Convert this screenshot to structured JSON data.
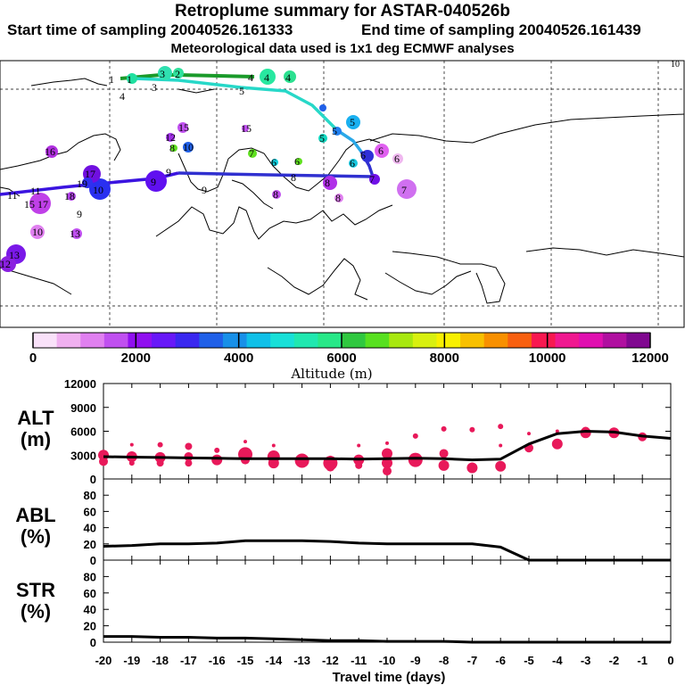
{
  "header": {
    "title": "Retroplume summary for ASTAR-040526b",
    "start": "Start time of sampling 20040526.161333",
    "end": "End time of sampling 20040526.161439",
    "met": "Meteorological data used is 1x1 deg ECMWF analyses"
  },
  "map": {
    "corner_label": "10",
    "path_colors": [
      "#1a9a2a",
      "#27d8c8",
      "#2aa8e8",
      "#3030d0",
      "#3b14e0"
    ]
  },
  "colorbar": {
    "title": "Altitude (m)",
    "tick_labels": [
      "0",
      "2000",
      "4000",
      "6000",
      "8000",
      "10000",
      "12000"
    ],
    "colors": [
      "#f9e1f9",
      "#f0b0f0",
      "#e080f0",
      "#c050f0",
      "#9010f0",
      "#6818f8",
      "#3a28f0",
      "#2060e8",
      "#1890e8",
      "#10c0e8",
      "#18e0d8",
      "#20e8b0",
      "#28e888",
      "#30c840",
      "#58e020",
      "#a8e810",
      "#d8f010",
      "#f8f000",
      "#f8c000",
      "#f89000",
      "#f86010",
      "#f81850",
      "#f01890",
      "#e010b0",
      "#b010a0",
      "#800890"
    ]
  },
  "chart_data": [
    {
      "type": "scatter+line",
      "name": "ALT",
      "ylabel": "ALT (m)",
      "ylim": [
        0,
        12000
      ],
      "yticks": [
        0,
        3000,
        6000,
        9000,
        12000
      ],
      "ytick_labels": [
        "0",
        "3000",
        "6000",
        "9000",
        "12000"
      ],
      "xlim": [
        -20,
        0
      ],
      "line": {
        "x": [
          -20,
          -19,
          -18,
          -17,
          -16,
          -15,
          -14,
          -13,
          -12,
          -11,
          -10,
          -9,
          -8,
          -7,
          -6,
          -5,
          -4,
          -3,
          -2,
          -1,
          0
        ],
        "y": [
          2800,
          2750,
          2700,
          2650,
          2600,
          2550,
          2550,
          2550,
          2550,
          2500,
          2550,
          2600,
          2550,
          2400,
          2500,
          4400,
          5700,
          6000,
          5900,
          5400,
          5100
        ]
      },
      "points": {
        "x": [
          -20,
          -20,
          -19,
          -19,
          -19,
          -18,
          -18,
          -18,
          -17,
          -17,
          -17,
          -16,
          -16,
          -15,
          -15,
          -15,
          -14,
          -14,
          -14,
          -13,
          -13,
          -12,
          -12,
          -12,
          -11,
          -11,
          -11,
          -10,
          -10,
          -10,
          -10,
          -9,
          -9,
          -8,
          -8,
          -8,
          -7,
          -7,
          -6,
          -6,
          -6,
          -5,
          -5,
          -4,
          -4,
          -3,
          -3,
          -2,
          -1
        ],
        "y": [
          3000,
          2200,
          4300,
          2800,
          2000,
          4300,
          2700,
          2000,
          4100,
          2800,
          2000,
          3600,
          2400,
          4700,
          3100,
          2400,
          4200,
          2800,
          2000,
          2300,
          2100,
          2700,
          2000,
          1500,
          4200,
          2400,
          1700,
          4500,
          3200,
          2000,
          1000,
          5400,
          2400,
          6300,
          3200,
          1700,
          6200,
          1400,
          6600,
          4200,
          1600,
          5700,
          3900,
          6000,
          4400,
          6000,
          5800,
          5800,
          5300
        ],
        "size": [
          6,
          5,
          2,
          6,
          3,
          3,
          6,
          4,
          4,
          5,
          4,
          3,
          6,
          2,
          8,
          5,
          2,
          7,
          6,
          8,
          6,
          2,
          8,
          5,
          2,
          6,
          4,
          2,
          6,
          6,
          5,
          3,
          8,
          3,
          5,
          6,
          3,
          6,
          3,
          2,
          6,
          2,
          5,
          2,
          6,
          5,
          6,
          6,
          5
        ],
        "color": "#e8195a"
      }
    },
    {
      "type": "line",
      "name": "ABL",
      "ylabel": "ABL (%)",
      "ylim": [
        0,
        100
      ],
      "yticks": [
        0,
        20,
        40,
        60,
        80
      ],
      "ytick_labels": [
        "0",
        "20",
        "40",
        "60",
        "80"
      ],
      "xlim": [
        -20,
        0
      ],
      "x": [
        -20,
        -19,
        -18,
        -17,
        -16,
        -15,
        -14,
        -13,
        -12,
        -11,
        -10,
        -9,
        -8,
        -7,
        -6,
        -5,
        -4,
        -3,
        -2,
        -1,
        0
      ],
      "y": [
        17,
        18,
        20,
        20,
        21,
        24,
        24,
        24,
        23,
        21,
        20,
        20,
        20,
        20,
        16,
        0,
        0,
        0,
        0,
        0,
        0
      ]
    },
    {
      "type": "line",
      "name": "STR",
      "ylabel": "STR (%)",
      "ylim": [
        0,
        100
      ],
      "yticks": [
        0,
        20,
        40,
        60,
        80
      ],
      "ytick_labels": [
        "0",
        "20",
        "40",
        "60",
        "80"
      ],
      "xlim": [
        -20,
        0
      ],
      "x": [
        -20,
        -19,
        -18,
        -17,
        -16,
        -15,
        -14,
        -13,
        -12,
        -11,
        -10,
        -9,
        -8,
        -7,
        -6,
        -5,
        -4,
        -3,
        -2,
        -1,
        0
      ],
      "y": [
        7,
        7,
        6,
        6,
        5,
        5,
        4,
        3,
        2,
        2,
        1,
        1,
        1,
        0,
        0,
        0,
        0,
        0,
        0,
        0,
        0
      ],
      "xlabel": "Travel time (days)",
      "xticks": [
        -20,
        -19,
        -18,
        -17,
        -16,
        -15,
        -14,
        -13,
        -12,
        -11,
        -10,
        -9,
        -8,
        -7,
        -6,
        -5,
        -4,
        -3,
        -2,
        -1,
        0
      ],
      "xtick_labels": [
        "-20",
        "-19",
        "-18",
        "-17",
        "-16",
        "-15",
        "-14",
        "-13",
        "-12",
        "-11",
        "-10",
        "-9",
        "-8",
        "-7",
        "-6",
        "-5",
        "-4",
        "-3",
        "-2",
        "-1",
        "0"
      ]
    }
  ]
}
